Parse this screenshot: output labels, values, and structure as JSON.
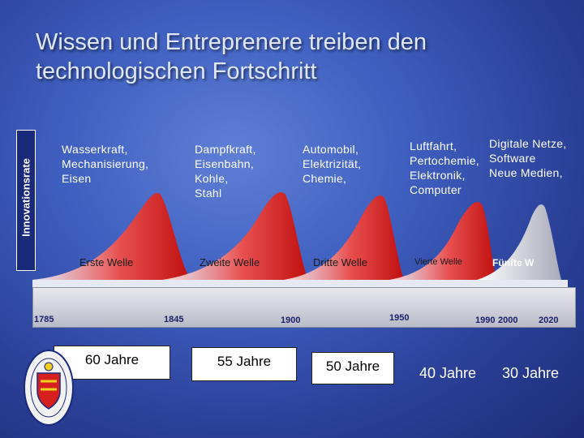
{
  "title": "Wissen und Entreprenere treiben den technologischen Fortschritt",
  "y_axis_label": "Innovationsrate",
  "eras": [
    {
      "lines": [
        "Wasserkraft,",
        "Mechanisierung,",
        "Eisen"
      ]
    },
    {
      "lines": [
        "Dampfkraft,",
        "Eisenbahn,",
        "Kohle,",
        "Stahl"
      ]
    },
    {
      "lines": [
        "Automobil,",
        "Elektrizität,",
        "Chemie,"
      ]
    },
    {
      "lines": [
        "Luftfahrt,",
        "Pertochemie,",
        "Elektronik,",
        "Computer"
      ]
    },
    {
      "lines": [
        "Digitale Netze,",
        "Software",
        "Neue Medien,"
      ]
    }
  ],
  "waves": [
    "Erste Welle",
    "Zweite Welle",
    "Dritte Welle",
    "Vierte Welle",
    "Fünfte W"
  ],
  "years": [
    "1785",
    "1845",
    "1900",
    "1950",
    "1990",
    "2000",
    "2020"
  ],
  "durations": [
    "60 Jahre",
    "55 Jahre",
    "50 Jahre",
    "40 Jahre",
    "30 Jahre"
  ],
  "colors": {
    "background": "#3f5fc0",
    "wave_red": "#d81f1f",
    "wave_light": "#ffffff",
    "wave_fifth": "#c9c9d4"
  },
  "icons": {
    "seal": "coat-of-arms-icon"
  }
}
